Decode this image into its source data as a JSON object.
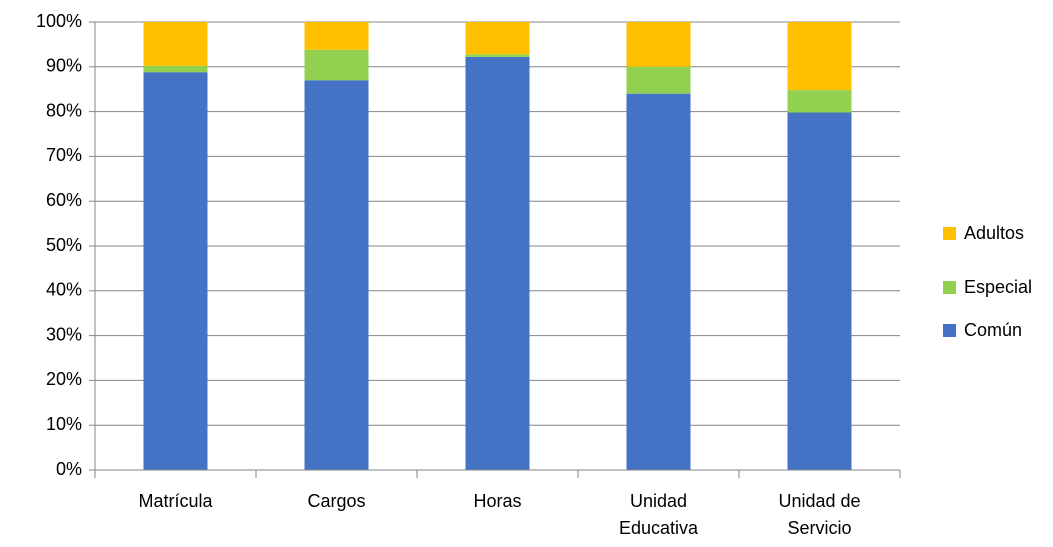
{
  "chart_data": {
    "type": "stacked_bar",
    "categories": [
      "Matrícula",
      "Cargos",
      "Horas",
      "Unidad Educativa",
      "Unidad de Servicio"
    ],
    "series": [
      {
        "name": "Común",
        "color": "#4472c4",
        "values": [
          88.8,
          87,
          92.2,
          84,
          79.8
        ]
      },
      {
        "name": "Especial",
        "color": "#92d050",
        "values": [
          1.4,
          6.8,
          0.6,
          6,
          5
        ]
      },
      {
        "name": "Adultos",
        "color": "#ffc000",
        "values": [
          9.8,
          6.2,
          7.2,
          10,
          15.2
        ]
      }
    ],
    "ylim": [
      0,
      100
    ],
    "yticks": [
      {
        "value": 0,
        "label": "0%"
      },
      {
        "value": 10,
        "label": "10%"
      },
      {
        "value": 20,
        "label": "20%"
      },
      {
        "value": 30,
        "label": "30%"
      },
      {
        "value": 40,
        "label": "40%"
      },
      {
        "value": 50,
        "label": "50%"
      },
      {
        "value": 60,
        "label": "60%"
      },
      {
        "value": 70,
        "label": "70%"
      },
      {
        "value": 80,
        "label": "80%"
      },
      {
        "value": 90,
        "label": "90%"
      },
      {
        "value": 100,
        "label": "100%"
      }
    ],
    "grid": true,
    "legend": "right"
  }
}
